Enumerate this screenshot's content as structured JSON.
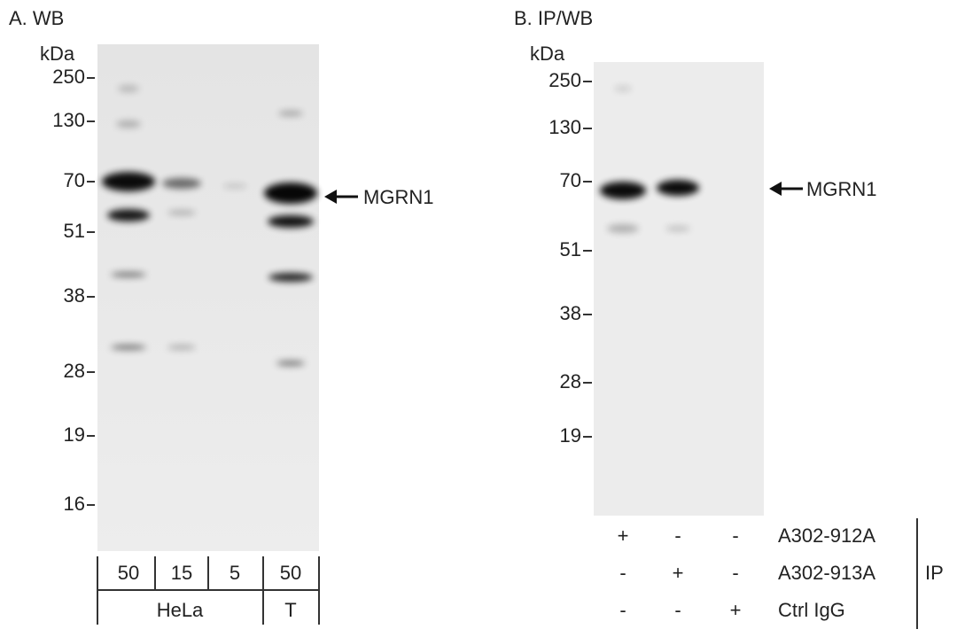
{
  "panels": [
    {
      "label": "A. WB",
      "unit": "kDa",
      "markers": [
        "250",
        "130",
        "70",
        "51",
        "38",
        "28",
        "19",
        "16"
      ],
      "target": "MGRN1",
      "lanes": [
        "50",
        "15",
        "5",
        "50"
      ],
      "groups": [
        "HeLa",
        "T"
      ]
    },
    {
      "label": "B. IP/WB",
      "unit": "kDa",
      "markers": [
        "250",
        "130",
        "70",
        "51",
        "38",
        "28",
        "19"
      ],
      "target": "MGRN1",
      "rows": [
        {
          "name": "A302-912A",
          "marks": [
            "+",
            "-",
            "-"
          ]
        },
        {
          "name": "A302-913A",
          "marks": [
            "-",
            "+",
            "-"
          ]
        },
        {
          "name": "Ctrl IgG",
          "marks": [
            "-",
            "-",
            "+"
          ]
        }
      ],
      "ip_label": "IP"
    }
  ]
}
